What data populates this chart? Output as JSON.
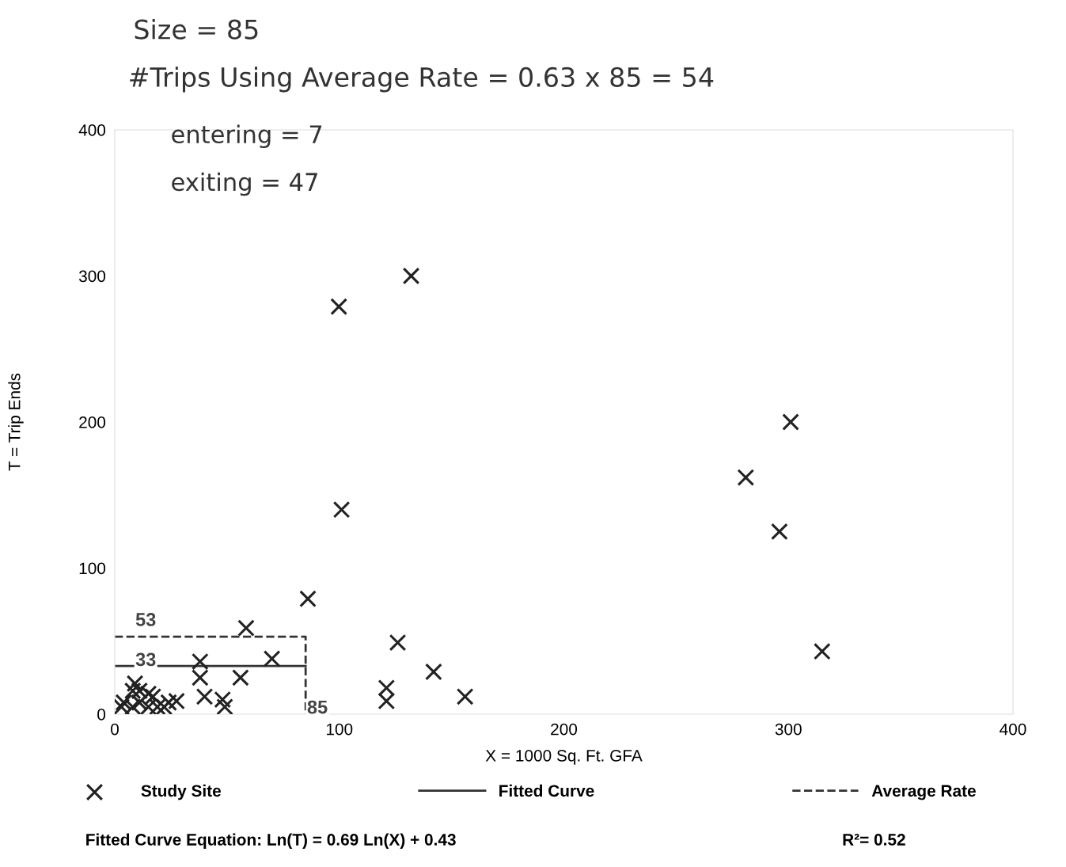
{
  "chart_data": {
    "type": "scatter",
    "xlabel": "X = 1000 Sq. Ft. GFA",
    "ylabel": "T = Trip Ends",
    "xlim": [
      0,
      400
    ],
    "ylim": [
      0,
      400
    ],
    "xticks": [
      0,
      100,
      200,
      300,
      400
    ],
    "yticks": [
      0,
      100,
      200,
      300,
      400
    ],
    "grid": false,
    "legend": "bottom",
    "series": [
      {
        "name": "Study Site",
        "color": "#222222",
        "marker": "cross",
        "x": [
          99.8,
          132,
          101,
          86,
          301,
          281,
          296,
          315,
          126,
          142,
          156,
          121,
          121,
          58.5,
          70,
          56,
          38,
          38,
          40,
          48,
          49,
          27.5,
          24,
          11,
          8,
          15,
          17,
          11,
          15,
          19,
          22,
          4,
          3,
          8,
          9
        ],
        "values": [
          279,
          300,
          140,
          79,
          200,
          162,
          125,
          43,
          49,
          29,
          12,
          18,
          9,
          59,
          38,
          25,
          36,
          25,
          12,
          10,
          5,
          9,
          8,
          16,
          16,
          14,
          12,
          8,
          5,
          5,
          5,
          8,
          5,
          5,
          21
        ]
      },
      {
        "name": "Fitted Curve",
        "type": "line",
        "color": "#333333",
        "line_style": "solid",
        "x": [
          0,
          85
        ],
        "values": [
          33,
          33
        ]
      },
      {
        "name": "Average Rate",
        "type": "line",
        "color": "#333333",
        "line_style": "dashed",
        "x": [
          0,
          85,
          85
        ],
        "values": [
          53,
          53,
          0
        ]
      }
    ],
    "annotations": [
      "53",
      "33",
      "85",
      "Size = 85",
      "#Trips Using Average Rate = 0.63 x 85 = 54",
      "entering = 7",
      "exiting = 47",
      "Fitted Curve Equation: Ln(T) = 0.69 Ln(X) + 0.43",
      "R²= 0.52"
    ]
  }
}
